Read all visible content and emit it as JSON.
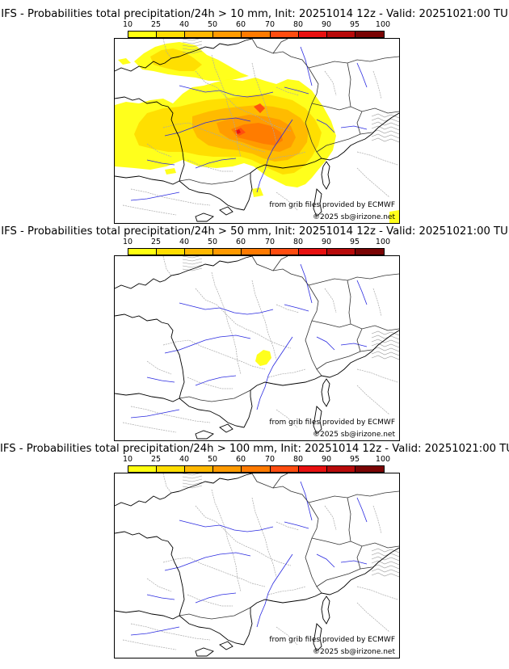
{
  "colorbar": {
    "ticks": [
      "10",
      "25",
      "40",
      "50",
      "60",
      "70",
      "80",
      "90",
      "95",
      "100"
    ],
    "colors": [
      "#ffff10",
      "#ffdd00",
      "#ffb800",
      "#ff9a00",
      "#ff7a00",
      "#ff4c10",
      "#e81010",
      "#b80a0a",
      "#7a0404"
    ]
  },
  "credits": {
    "grib": "from grib files provided by ECMWF",
    "copyright": "©2025 sb@irizone.net"
  },
  "panels": [
    {
      "title": "IFS - Probabilities total precipitation/24h > 10 mm, Init: 20251014 12z - Valid: 20251021:00 TU"
    },
    {
      "title": "IFS - Probabilities total precipitation/24h > 50 mm, Init: 20251014 12z - Valid: 20251021:00 TU"
    },
    {
      "title": "IFS - Probabilities total precipitation/24h > 100 mm, Init: 20251014 12z - Valid: 20251021:00 TU"
    }
  ]
}
